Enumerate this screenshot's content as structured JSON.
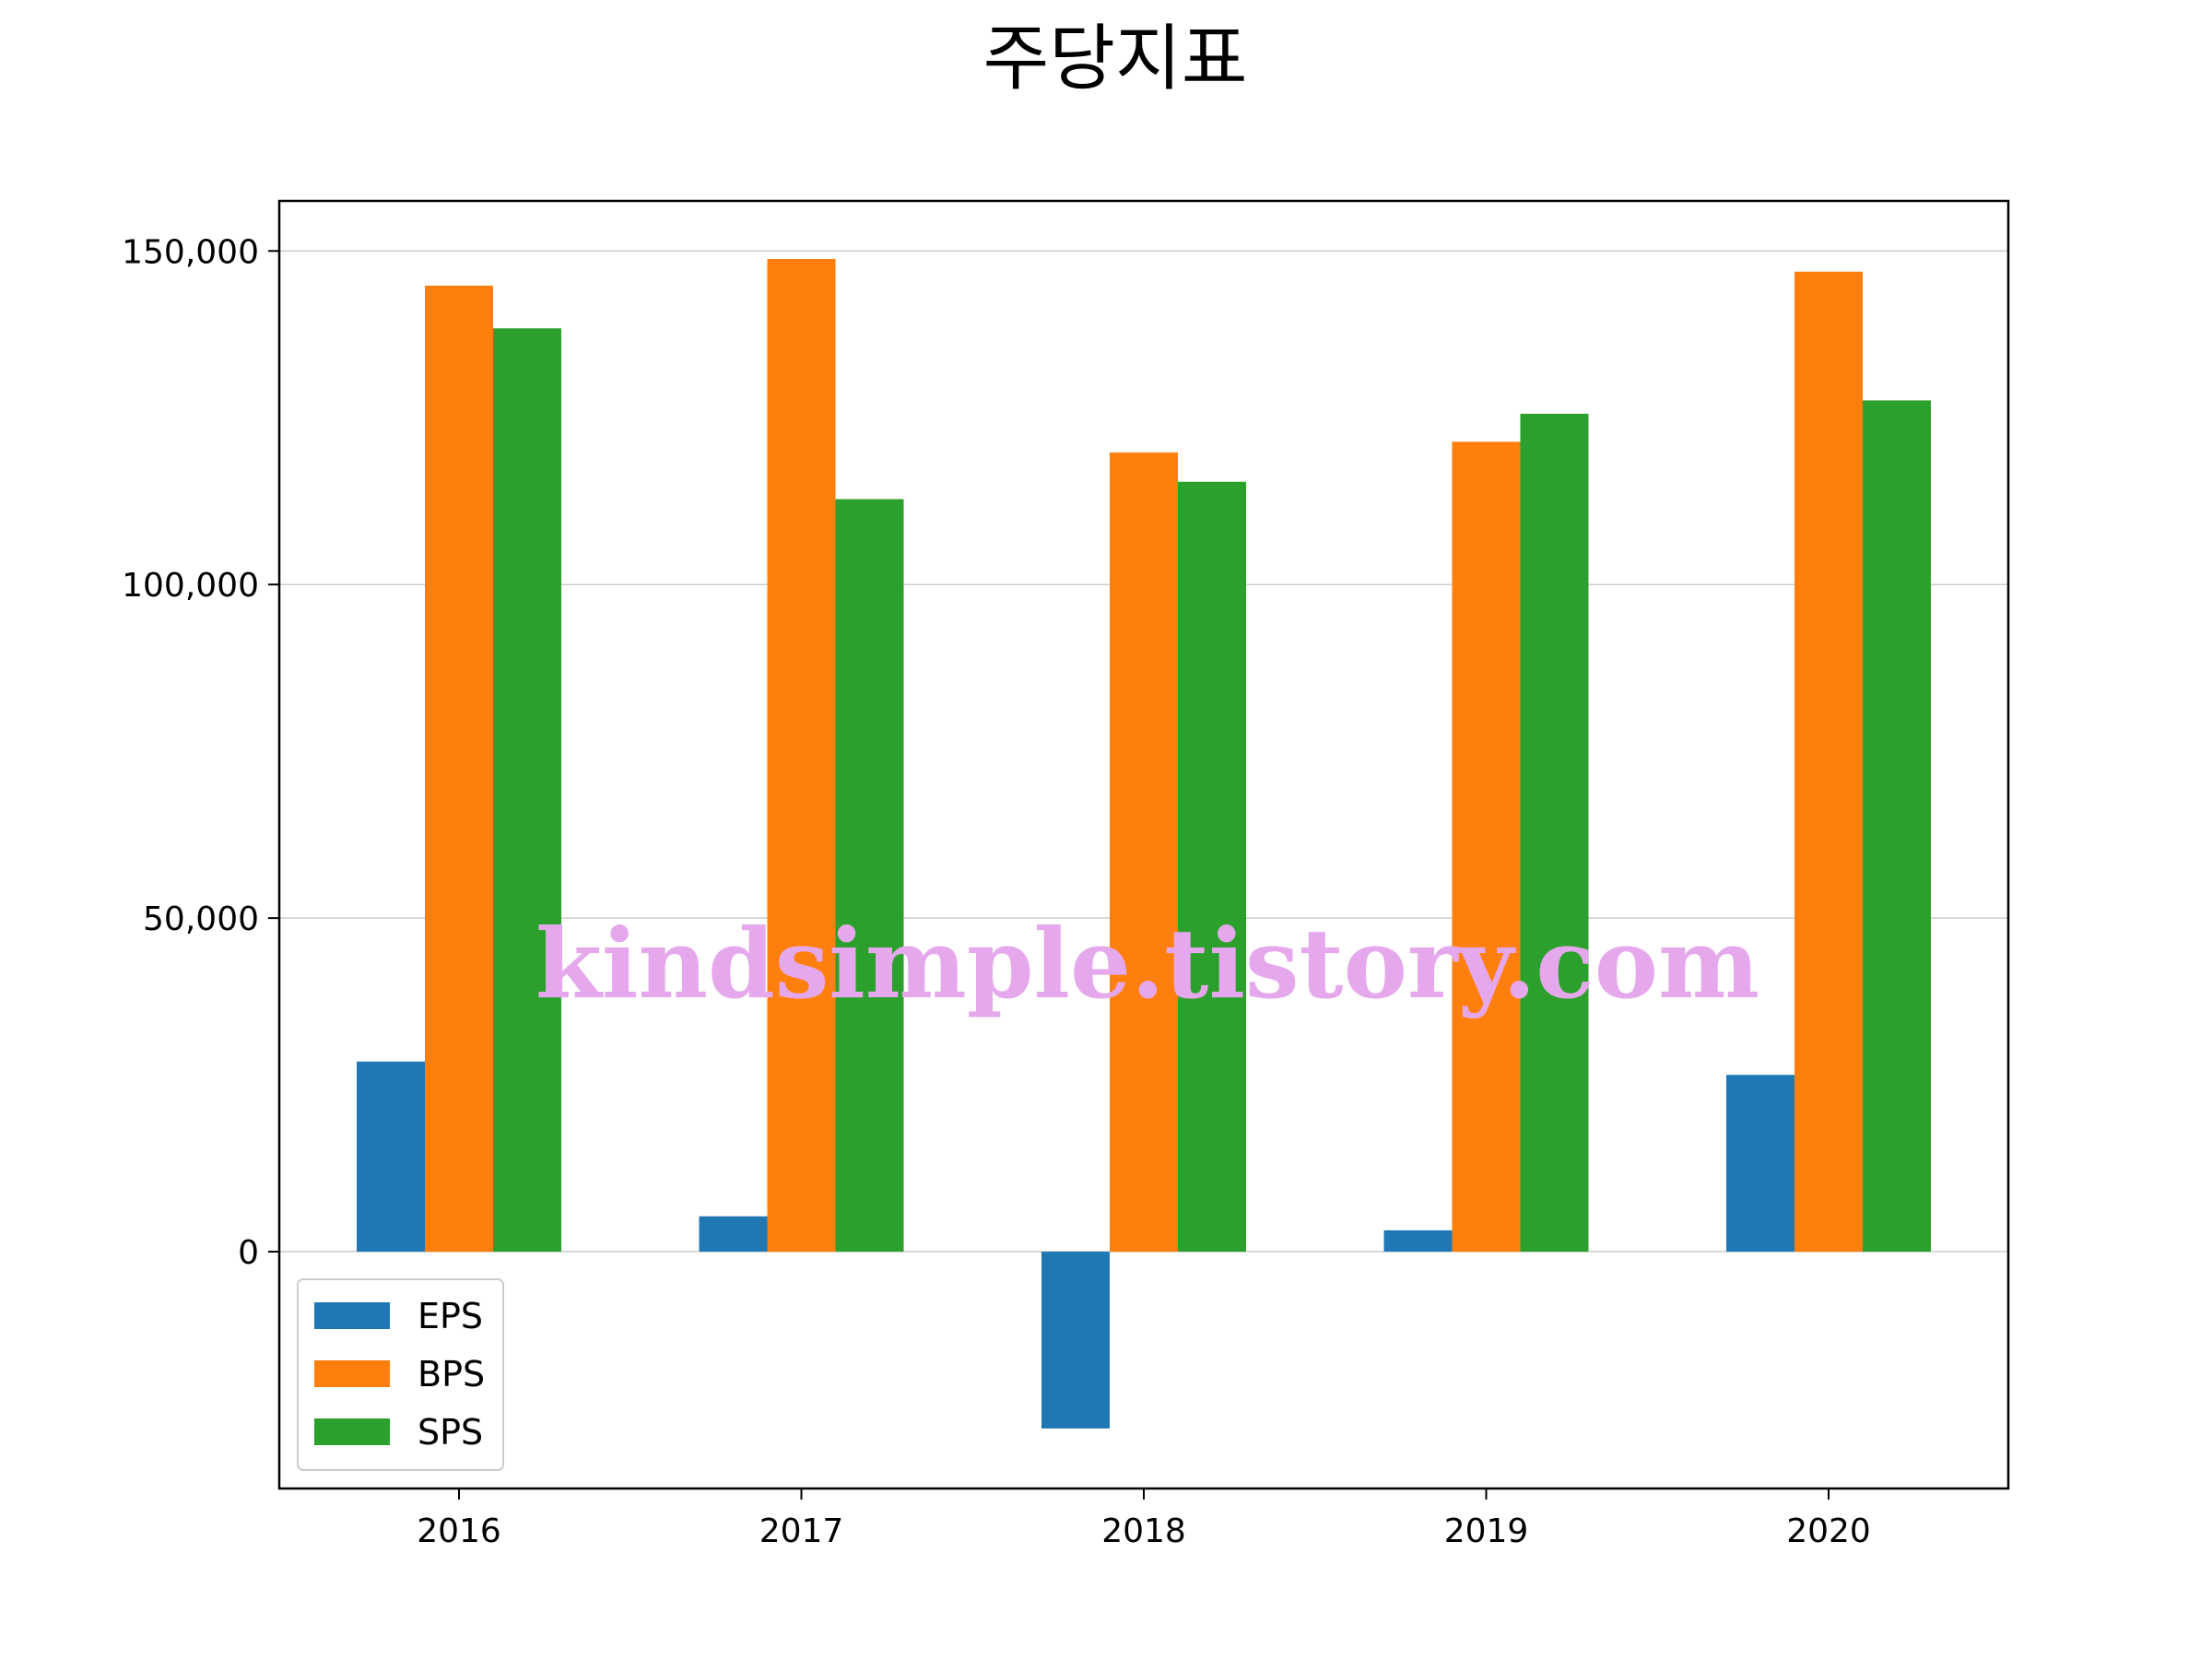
{
  "chart_data": {
    "type": "bar",
    "title": "주당지표",
    "xlabel": "",
    "ylabel": "",
    "categories": [
      "2016",
      "2017",
      "2018",
      "2019",
      "2020"
    ],
    "series": [
      {
        "name": "EPS",
        "color": "#1f77b4",
        "values": [
          28500,
          5300,
          -26500,
          3200,
          26500
        ]
      },
      {
        "name": "BPS",
        "color": "#ff7f0e",
        "values": [
          144800,
          148800,
          119800,
          121400,
          146900
        ]
      },
      {
        "name": "SPS",
        "color": "#2ca02c",
        "values": [
          138400,
          112800,
          115400,
          125600,
          127600
        ]
      }
    ],
    "ylim": [
      -35500,
      157500
    ],
    "yticks": [
      0,
      50000,
      100000,
      150000
    ],
    "ytick_labels": [
      "0",
      "50,000",
      "100,000",
      "150,000"
    ],
    "grid": "y",
    "legend_position": "lower-left"
  },
  "watermark": "kindsimple.tistory.com"
}
